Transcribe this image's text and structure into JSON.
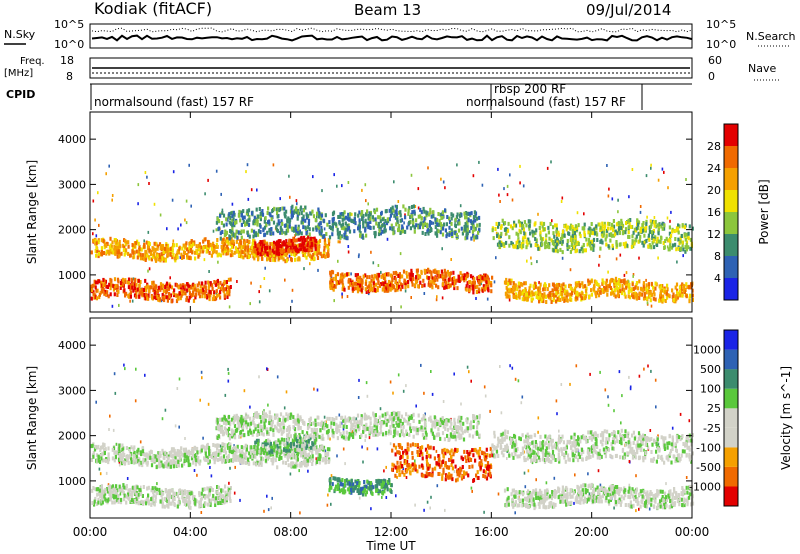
{
  "header": {
    "station": "Kodiak (fitACF)",
    "beam": "Beam 13",
    "date": "09/Jul/2014"
  },
  "top_panels": {
    "nsky": {
      "label": "N.Sky",
      "ticks": [
        "10^5",
        "10^0"
      ],
      "right_label": "N.Search",
      "right_ticks": [
        "10^5",
        "10^0"
      ]
    },
    "freq": {
      "label_line1": "Freq.",
      "label_line2": "[MHz]",
      "ticks": [
        "18",
        "8"
      ],
      "right_label": "Nave",
      "right_ticks": [
        "60",
        "0"
      ]
    },
    "cpid": {
      "label": "CPID",
      "programs": [
        {
          "name": "normalsound (fast) 157 RF",
          "start_hour": 0,
          "end_hour": 16
        },
        {
          "name": "rbsp 200 RF",
          "start_hour": 16,
          "end_hour": 16.1
        },
        {
          "name": "normalsound (fast) 157 RF",
          "start_hour": 16.1,
          "end_hour": 22
        }
      ]
    }
  },
  "chart_data": [
    {
      "type": "heatmap",
      "title": "",
      "quantity": "Power",
      "ylabel": "Slant Range [km]",
      "yticks": [
        1000,
        2000,
        3000,
        4000
      ],
      "ylim": [
        180,
        4600
      ],
      "xlim_hours": [
        0,
        24
      ],
      "colorbar_label": "Power [dB]",
      "colorbar_ticks": [
        "4",
        "8",
        "12",
        "16",
        "20",
        "24",
        "28"
      ],
      "colorbar_colors": [
        "#1a24e6",
        "#2e62b4",
        "#3c8c6e",
        "#8cc63c",
        "#f0e100",
        "#f5a000",
        "#f06a00",
        "#e30000"
      ],
      "scatter_bands": [
        {
          "x_hours": [
            0,
            5.6
          ],
          "y_km": [
            500,
            900
          ],
          "level": 6
        },
        {
          "x_hours": [
            0,
            9.5
          ],
          "y_km": [
            1400,
            1800
          ],
          "level": 5
        },
        {
          "x_hours": [
            6.5,
            9
          ],
          "y_km": [
            1550,
            1850
          ],
          "level": 7
        },
        {
          "x_hours": [
            9.5,
            16
          ],
          "y_km": [
            700,
            1100
          ],
          "level": 6
        },
        {
          "x_hours": [
            5,
            15.5
          ],
          "y_km": [
            1900,
            2500
          ],
          "level": 2
        },
        {
          "x_hours": [
            16,
            24
          ],
          "y_km": [
            1600,
            2200
          ],
          "level": 3
        },
        {
          "x_hours": [
            16.5,
            24
          ],
          "y_km": [
            500,
            900
          ],
          "level": 5
        }
      ]
    },
    {
      "type": "heatmap",
      "title": "",
      "quantity": "Velocity",
      "ylabel": "Slant Range [km]",
      "yticks": [
        1000,
        2000,
        3000,
        4000
      ],
      "ylim": [
        180,
        4600
      ],
      "xlim_hours": [
        0,
        24
      ],
      "xlabel": "Time UT",
      "xticks": [
        "00:00",
        "04:00",
        "08:00",
        "12:00",
        "16:00",
        "20:00",
        "00:00"
      ],
      "colorbar_label": "Velocity [m s^-1]",
      "colorbar_ticks": [
        "-1000",
        "-500",
        "-100",
        "-25",
        "25",
        "100",
        "500",
        "1000"
      ],
      "colorbar_colors": [
        "#e30000",
        "#f06a00",
        "#f5a000",
        "#d2d2c8",
        "#d2d2c8",
        "#5ac83c",
        "#3c8c6e",
        "#2e62b4",
        "#1a24e6"
      ],
      "scatter_bands": [
        {
          "x_hours": [
            0,
            5.6
          ],
          "y_km": [
            500,
            900
          ],
          "level": 4
        },
        {
          "x_hours": [
            0,
            9.5
          ],
          "y_km": [
            1400,
            1800
          ],
          "level": 4
        },
        {
          "x_hours": [
            6.5,
            9
          ],
          "y_km": [
            1700,
            2000
          ],
          "level": 5
        },
        {
          "x_hours": [
            9.5,
            12
          ],
          "y_km": [
            800,
            1100
          ],
          "level": 6
        },
        {
          "x_hours": [
            12,
            16
          ],
          "y_km": [
            1100,
            1800
          ],
          "level": 1
        },
        {
          "x_hours": [
            5,
            15.5
          ],
          "y_km": [
            2000,
            2500
          ],
          "level": 4
        },
        {
          "x_hours": [
            16,
            24
          ],
          "y_km": [
            1500,
            2100
          ],
          "level": 4
        },
        {
          "x_hours": [
            16.5,
            24
          ],
          "y_km": [
            500,
            900
          ],
          "level": 4
        }
      ]
    }
  ]
}
